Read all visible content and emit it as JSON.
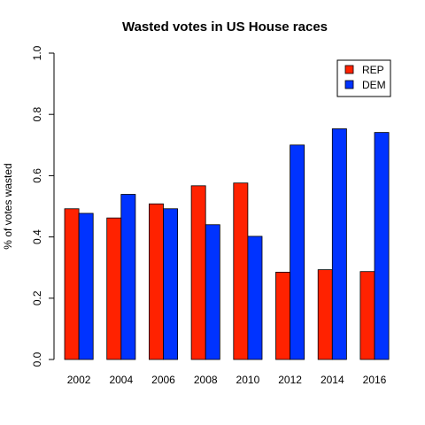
{
  "chart_data": {
    "type": "bar",
    "title": "Wasted votes in US House races",
    "xlabel": "",
    "ylabel": "% of votes wasted",
    "categories": [
      "2002",
      "2004",
      "2006",
      "2008",
      "2010",
      "2012",
      "2014",
      "2016"
    ],
    "series": [
      {
        "name": "REP",
        "color": "#ff2200",
        "values": [
          0.492,
          0.462,
          0.508,
          0.567,
          0.576,
          0.285,
          0.293,
          0.287
        ]
      },
      {
        "name": "DEM",
        "color": "#0033ff",
        "values": [
          0.477,
          0.539,
          0.492,
          0.44,
          0.402,
          0.7,
          0.753,
          0.741
        ]
      }
    ],
    "ylim": [
      0,
      1.0
    ],
    "yticks": [
      "0.0",
      "0.2",
      "0.4",
      "0.6",
      "0.8",
      "1.0"
    ],
    "grid": false,
    "legend_position": "top-right"
  }
}
